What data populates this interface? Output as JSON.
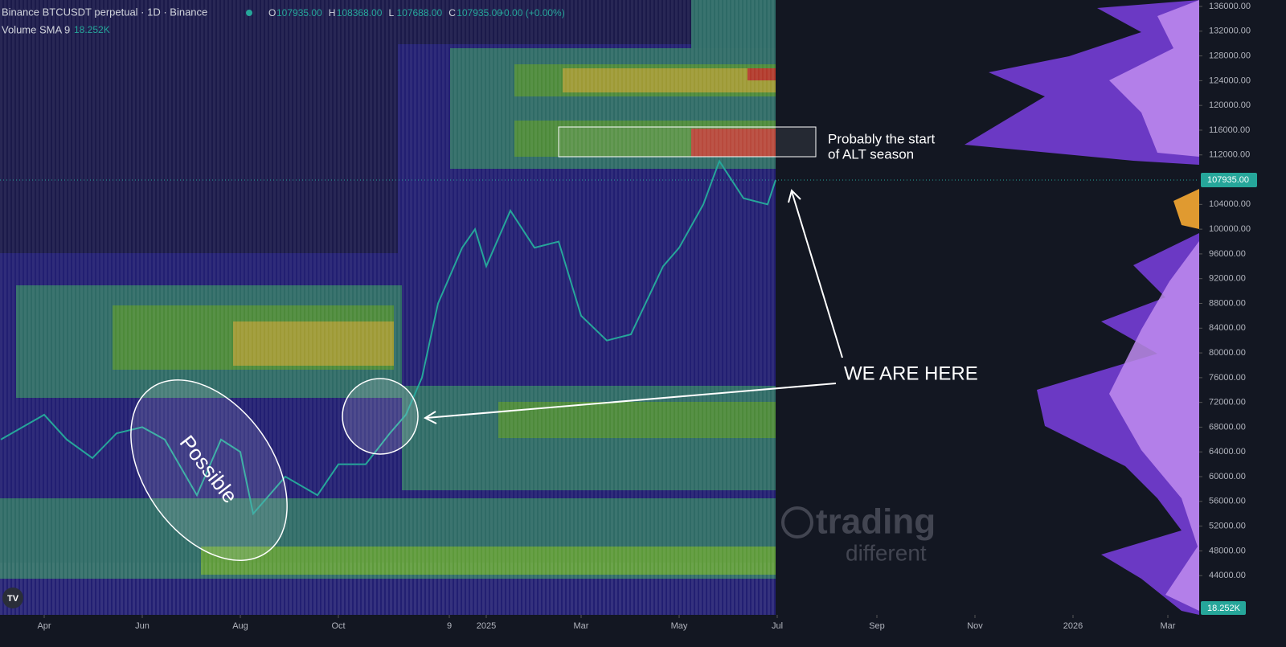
{
  "header": {
    "symbol": "Binance BTCUSDT perpetual · 1D · Binance",
    "ohlc": [
      {
        "label": "O",
        "value": "107935.00"
      },
      {
        "label": "H",
        "value": "108368.00"
      },
      {
        "label": "L",
        "value": "107688.00"
      },
      {
        "label": "C",
        "value": "107935.00"
      }
    ],
    "change": "+0.00 (+0.00%)",
    "indicator": {
      "name": "Volume SMA 9",
      "value": "18.252K"
    }
  },
  "annotations": {
    "box_line1": "Probably the start",
    "box_line2": "of ALT season",
    "here": "WE ARE HERE",
    "ellipse": "Possible",
    "watermark1": "trading",
    "watermark2": "different"
  },
  "price_label": "107935.00",
  "volume_label": "18.252K",
  "chart_data": {
    "type": "line",
    "x": [
      -27,
      0,
      14,
      30,
      45,
      61,
      75,
      95,
      110,
      122,
      130,
      150,
      170,
      183,
      200,
      215,
      225,
      235,
      245,
      260,
      268,
      275,
      290,
      305,
      320,
      334,
      350,
      365,
      385,
      395,
      410,
      420,
      435,
      450,
      455
    ],
    "series": [
      {
        "color": "#26a69a",
        "values": [
          66000,
          70000,
          66000,
          63000,
          67000,
          68000,
          66000,
          57000,
          66000,
          64000,
          54000,
          60000,
          57000,
          62000,
          62000,
          67000,
          70000,
          76000,
          88000,
          97000,
          100000,
          94000,
          103000,
          97000,
          98000,
          86000,
          82000,
          83000,
          94000,
          97000,
          104000,
          111000,
          105000,
          104000,
          107935
        ]
      }
    ],
    "xlim": [
      -27.5,
      718.5
    ],
    "xticks": [
      {
        "value": 0,
        "label": "Apr"
      },
      {
        "value": 61,
        "label": "Jun"
      },
      {
        "value": 122,
        "label": "Aug"
      },
      {
        "value": 183,
        "label": "Oct"
      },
      {
        "value": 252,
        "label": "9"
      },
      {
        "value": 275,
        "label": "2025"
      },
      {
        "value": 334,
        "label": "Mar"
      },
      {
        "value": 395,
        "label": "May"
      },
      {
        "value": 456,
        "label": "Jul"
      },
      {
        "value": 518,
        "label": "Sep"
      },
      {
        "value": 579,
        "label": "Nov"
      },
      {
        "value": 640,
        "label": "2026"
      },
      {
        "value": 699,
        "label": "Mar"
      }
    ],
    "ylim": [
      37660,
      137040
    ],
    "yticks": [
      {
        "value": 136000,
        "label": "136000.00"
      },
      {
        "value": 132000,
        "label": "132000.00"
      },
      {
        "value": 128000,
        "label": "128000.00"
      },
      {
        "value": 124000,
        "label": "124000.00"
      },
      {
        "value": 120000,
        "label": "120000.00"
      },
      {
        "value": 116000,
        "label": "116000.00"
      },
      {
        "value": 112000,
        "label": "112000.00"
      },
      {
        "value": 104000,
        "label": "104000.00"
      },
      {
        "value": 100000,
        "label": "100000.00"
      },
      {
        "value": 96000,
        "label": "96000.00"
      },
      {
        "value": 92000,
        "label": "92000.00"
      },
      {
        "value": 88000,
        "label": "88000.00"
      },
      {
        "value": 84000,
        "label": "84000.00"
      },
      {
        "value": 80000,
        "label": "80000.00"
      },
      {
        "value": 76000,
        "label": "76000.00"
      },
      {
        "value": 72000,
        "label": "72000.00"
      },
      {
        "value": 68000,
        "label": "68000.00"
      },
      {
        "value": 64000,
        "label": "64000.00"
      },
      {
        "value": 60000,
        "label": "60000.00"
      },
      {
        "value": 56000,
        "label": "56000.00"
      },
      {
        "value": 52000,
        "label": "52000.00"
      },
      {
        "value": 48000,
        "label": "48000.00"
      },
      {
        "value": 44000,
        "label": "44000.00"
      }
    ]
  }
}
